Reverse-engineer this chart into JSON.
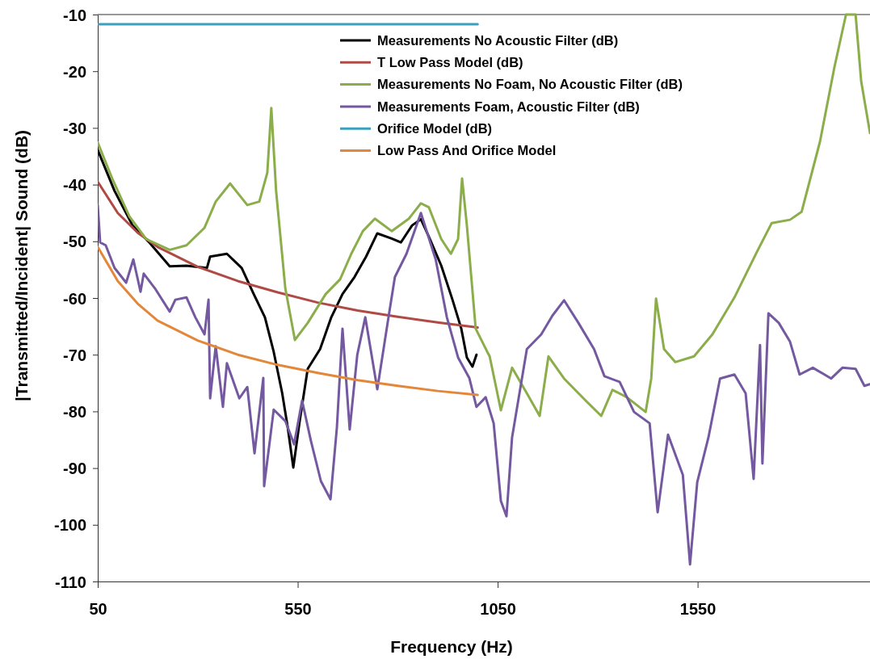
{
  "chart_data": {
    "type": "line",
    "xlabel": "Frequency (Hz)",
    "ylabel": "|Transmitted/Incident| Sound (dB)",
    "xlim": [
      50,
      1981
    ],
    "xticks": [
      50,
      550,
      1050,
      1550
    ],
    "ylim": [
      -110,
      -10
    ],
    "yticks": [
      -110,
      -100,
      -90,
      -80,
      -70,
      -60,
      -50,
      -40,
      -30,
      -20,
      -10
    ],
    "grid": false,
    "legend": "top right",
    "marker": "none",
    "line_style": "solid",
    "series": [
      {
        "name": "Measurements No Acoustic Filter (dB)",
        "color": "#000000",
        "x": [
          50,
          92,
          137,
          179,
          230,
          272,
          323,
          331,
          373,
          410,
          440,
          468,
          490,
          511,
          525,
          539,
          555,
          575,
          606,
          634,
          662,
          692,
          721,
          749,
          785,
          808,
          836,
          858,
          878,
          909,
          937,
          959,
          973,
          987,
          997
        ],
        "values": [
          -33.9,
          -41.1,
          -47.2,
          -50.2,
          -54.4,
          -54.3,
          -54.7,
          -52.7,
          -52.2,
          -54.7,
          -59.3,
          -63.4,
          -69.5,
          -76.7,
          -82.8,
          -89.9,
          -81.7,
          -72.5,
          -69,
          -63.4,
          -59.3,
          -56.3,
          -52.7,
          -48.6,
          -49.5,
          -50.2,
          -47.2,
          -46.1,
          -49.2,
          -54.3,
          -60.3,
          -65.4,
          -70.5,
          -72.1,
          -70
        ]
      },
      {
        "name": "T Low Pass Model (dB)",
        "color": "#b04a45",
        "x": [
          50,
          100,
          150,
          200,
          300,
          400,
          500,
          600,
          700,
          800,
          900,
          1000
        ],
        "values": [
          -39.5,
          -45,
          -48.5,
          -51,
          -54.5,
          -57,
          -59,
          -60.8,
          -62.2,
          -63.3,
          -64.3,
          -65.2
        ]
      },
      {
        "name": "Measurements No Foam, No Acoustic Filter (dB)",
        "color": "#8bad4a",
        "x": [
          50,
          86,
          129,
          171,
          230,
          272,
          317,
          345,
          381,
          424,
          454,
          474,
          484,
          496,
          519,
          543,
          575,
          620,
          656,
          684,
          713,
          743,
          785,
          828,
          858,
          878,
          909,
          933,
          951,
          961,
          973,
          995,
          1024,
          1030,
          1058,
          1086,
          1123,
          1155,
          1177,
          1216,
          1270,
          1309,
          1337,
          1373,
          1420,
          1434,
          1446,
          1466,
          1494,
          1541,
          1587,
          1642,
          1698,
          1735,
          1781,
          1810,
          1856,
          1892,
          1921,
          1945,
          1959,
          1981
        ],
        "values": [
          -32.6,
          -38.9,
          -45.6,
          -49.6,
          -51.5,
          -50.7,
          -47.6,
          -43,
          -39.8,
          -43.6,
          -43,
          -37.9,
          -26.5,
          -41.1,
          -58.3,
          -67.4,
          -64.4,
          -59.3,
          -56.7,
          -52.2,
          -48.2,
          -46,
          -48.2,
          -46,
          -43.3,
          -44,
          -49.6,
          -52.2,
          -49.6,
          -38.9,
          -47.2,
          -65.4,
          -69.5,
          -70.3,
          -79.8,
          -72.3,
          -76.8,
          -80.8,
          -70.3,
          -74.2,
          -78.1,
          -80.8,
          -76.2,
          -77.5,
          -80.1,
          -74.2,
          -60.1,
          -69,
          -71.3,
          -70.3,
          -66.4,
          -59.9,
          -51.9,
          -46.8,
          -46.2,
          -44.8,
          -32.4,
          -19.3,
          -10,
          -10,
          -21.8,
          -30.9
        ]
      },
      {
        "name": "Measurements Foam, Acoustic Filter (dB)",
        "color": "#7459a0",
        "x": [
          50,
          56,
          70,
          92,
          121,
          139,
          157,
          165,
          193,
          230,
          244,
          272,
          294,
          317,
          327,
          331,
          345,
          363,
          373,
          404,
          424,
          442,
          464,
          466,
          490,
          519,
          541,
          561,
          583,
          608,
          632,
          648,
          662,
          680,
          699,
          719,
          749,
          777,
          793,
          822,
          858,
          895,
          923,
          951,
          979,
          997,
          1020,
          1040,
          1058,
          1072,
          1086,
          1123,
          1159,
          1187,
          1216,
          1252,
          1291,
          1317,
          1355,
          1391,
          1430,
          1450,
          1476,
          1513,
          1531,
          1549,
          1577,
          1606,
          1642,
          1670,
          1690,
          1706,
          1712,
          1727,
          1753,
          1781,
          1805,
          1838,
          1884,
          1912,
          1945,
          1967,
          1981
        ],
        "values": [
          -43.6,
          -50.2,
          -50.7,
          -54.7,
          -57.3,
          -53.2,
          -58.9,
          -55.7,
          -58.3,
          -62.4,
          -60.3,
          -59.9,
          -63.4,
          -66.4,
          -60.3,
          -77.7,
          -68.5,
          -79.2,
          -71.5,
          -77.7,
          -75.7,
          -87.4,
          -74.1,
          -93.2,
          -79.7,
          -81.7,
          -85.8,
          -78.1,
          -85.2,
          -92.3,
          -95.5,
          -82.8,
          -65.4,
          -83.2,
          -70,
          -63.4,
          -76.1,
          -63.4,
          -56.3,
          -52.2,
          -45,
          -53.2,
          -63.4,
          -70.5,
          -74.1,
          -79.2,
          -77.5,
          -82.1,
          -95.8,
          -98.5,
          -84.6,
          -69,
          -66.4,
          -63.1,
          -60.4,
          -64.4,
          -69,
          -73.8,
          -74.8,
          -80.1,
          -82.1,
          -97.8,
          -84.1,
          -91.2,
          -107,
          -92.5,
          -84.6,
          -74.2,
          -73.5,
          -76.8,
          -91.9,
          -68.3,
          -89.2,
          -62.7,
          -64.4,
          -67.7,
          -73.5,
          -72.3,
          -74.2,
          -72.3,
          -72.5,
          -75.5,
          -75.2
        ]
      },
      {
        "name": "Orifice Model (dB)",
        "color": "#3c9fbd",
        "x": [
          50,
          1000
        ],
        "values": [
          -11.7,
          -11.7
        ]
      },
      {
        "name": "Low Pass And Orifice Model",
        "color": "#e3873a",
        "x": [
          50,
          100,
          150,
          200,
          300,
          400,
          500,
          600,
          700,
          800,
          900,
          1000
        ],
        "values": [
          -51,
          -57,
          -61,
          -64,
          -67.5,
          -70,
          -71.8,
          -73.2,
          -74.5,
          -75.5,
          -76.4,
          -77.1
        ]
      }
    ]
  }
}
